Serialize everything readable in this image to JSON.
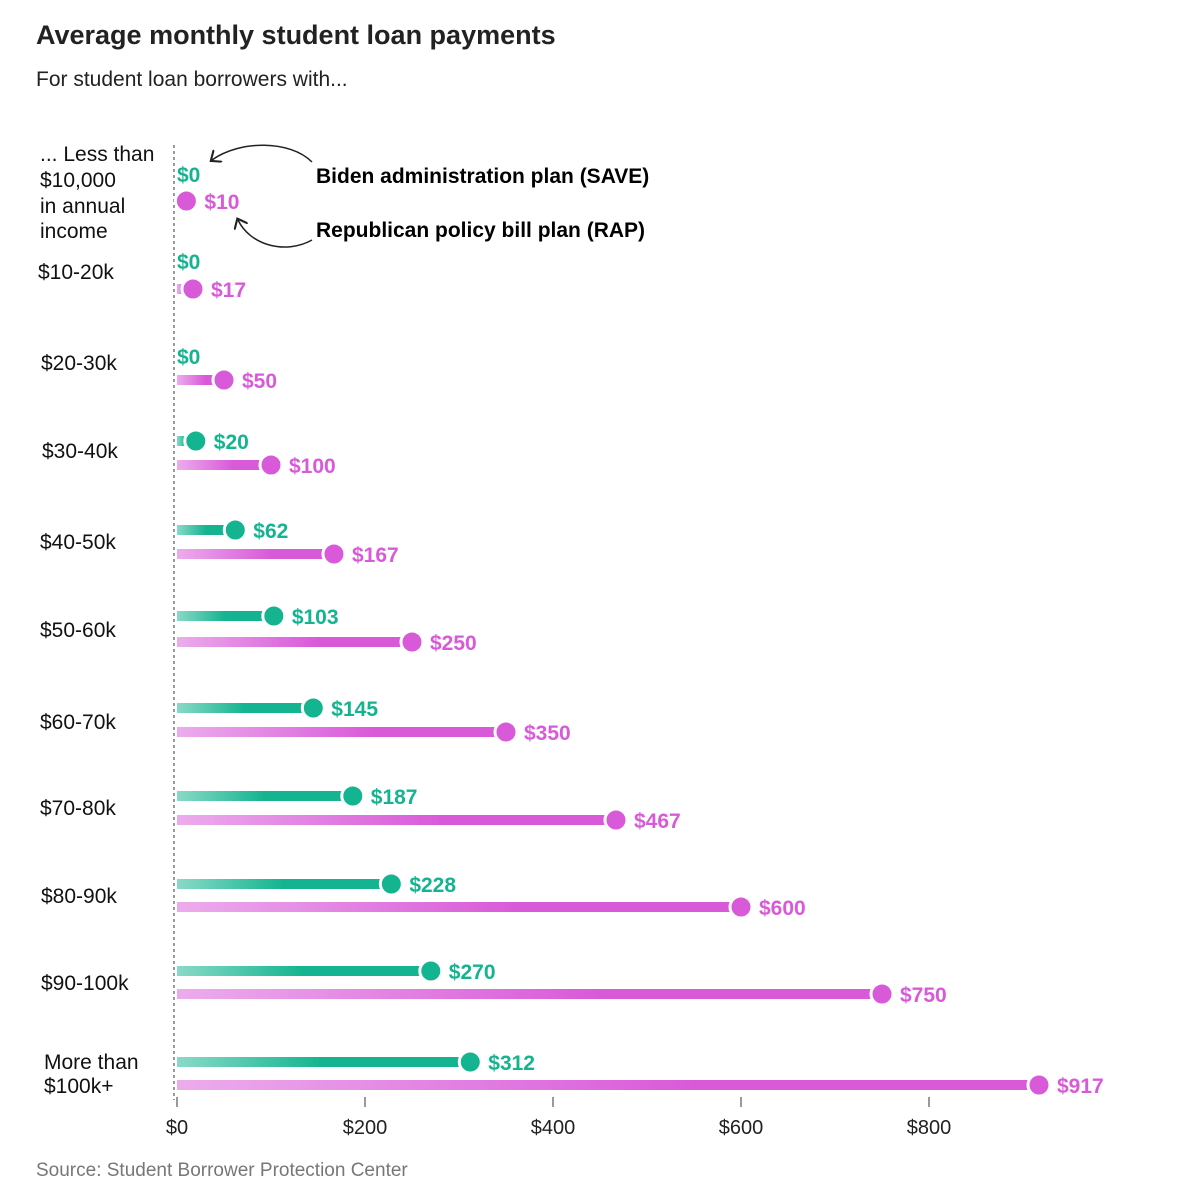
{
  "chart_data": {
    "type": "dot-bar",
    "title": "Average monthly student loan payments",
    "subtitle": "For student loan borrowers with...",
    "source": "Source: Student Borrower Protection Center",
    "categories": [
      [
        "... Less than",
        "$10,000",
        "in annual",
        "income"
      ],
      [
        "$10-20k"
      ],
      [
        "$20-30k"
      ],
      [
        "$30-40k"
      ],
      [
        "$40-50k"
      ],
      [
        "$50-60k"
      ],
      [
        "$60-70k"
      ],
      [
        "$70-80k"
      ],
      [
        "$80-90k"
      ],
      [
        "$90-100k"
      ],
      [
        "More than",
        "$100k+"
      ]
    ],
    "series": [
      {
        "name": "Biden administration plan (SAVE)",
        "color": "#13b48f",
        "values": [
          0,
          0,
          0,
          20,
          62,
          103,
          145,
          187,
          228,
          270,
          312
        ],
        "labels": [
          "$0",
          "$0",
          "$0",
          "$20",
          "$62",
          "$103",
          "$145",
          "$187",
          "$228",
          "$270",
          "$312"
        ]
      },
      {
        "name": "Republican policy bill plan (RAP)",
        "color": "#d95ad9",
        "values": [
          10,
          17,
          50,
          100,
          167,
          250,
          350,
          467,
          600,
          750,
          917
        ],
        "labels": [
          "$10",
          "$17",
          "$50",
          "$100",
          "$167",
          "$250",
          "$350",
          "$467",
          "$600",
          "$750",
          "$917"
        ]
      }
    ],
    "xlim": [
      0,
      950
    ],
    "xticks": [
      0,
      200,
      400,
      600,
      800
    ],
    "xtick_labels": [
      "$0",
      "$200",
      "$400",
      "$600",
      "$800"
    ],
    "legend": "annotation-top"
  }
}
